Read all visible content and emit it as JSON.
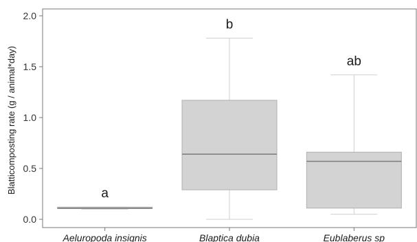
{
  "chart_data": {
    "type": "boxplot",
    "ylabel": "Blatticomposting rate (g / animal*day)",
    "xlabel": "",
    "ylim": [
      0,
      2.0
    ],
    "yticks": [
      "0.0",
      "0.5",
      "1.0",
      "1.5",
      "2.0"
    ],
    "categories": [
      "Aeluropoda insignis",
      "Blaptica dubia",
      "Eublaberus sp"
    ],
    "boxes": [
      {
        "category": "Aeluropoda insignis",
        "min": 0.1,
        "q1": 0.105,
        "median": 0.11,
        "q3": 0.12,
        "max": 0.12,
        "letter": "a"
      },
      {
        "category": "Blaptica dubia",
        "min": 0.0,
        "q1": 0.29,
        "median": 0.64,
        "q3": 1.17,
        "max": 1.78,
        "letter": "b"
      },
      {
        "category": "Eublaberus sp",
        "min": 0.05,
        "q1": 0.11,
        "median": 0.57,
        "q3": 0.66,
        "max": 1.42,
        "letter": "ab"
      }
    ],
    "grid": false,
    "colors": {
      "box_fill": "#d3d3d3",
      "box_stroke": "#b0b0b0",
      "median": "#7a7a7a",
      "whisker": "#cfcfcf",
      "axis": "#777777"
    }
  }
}
